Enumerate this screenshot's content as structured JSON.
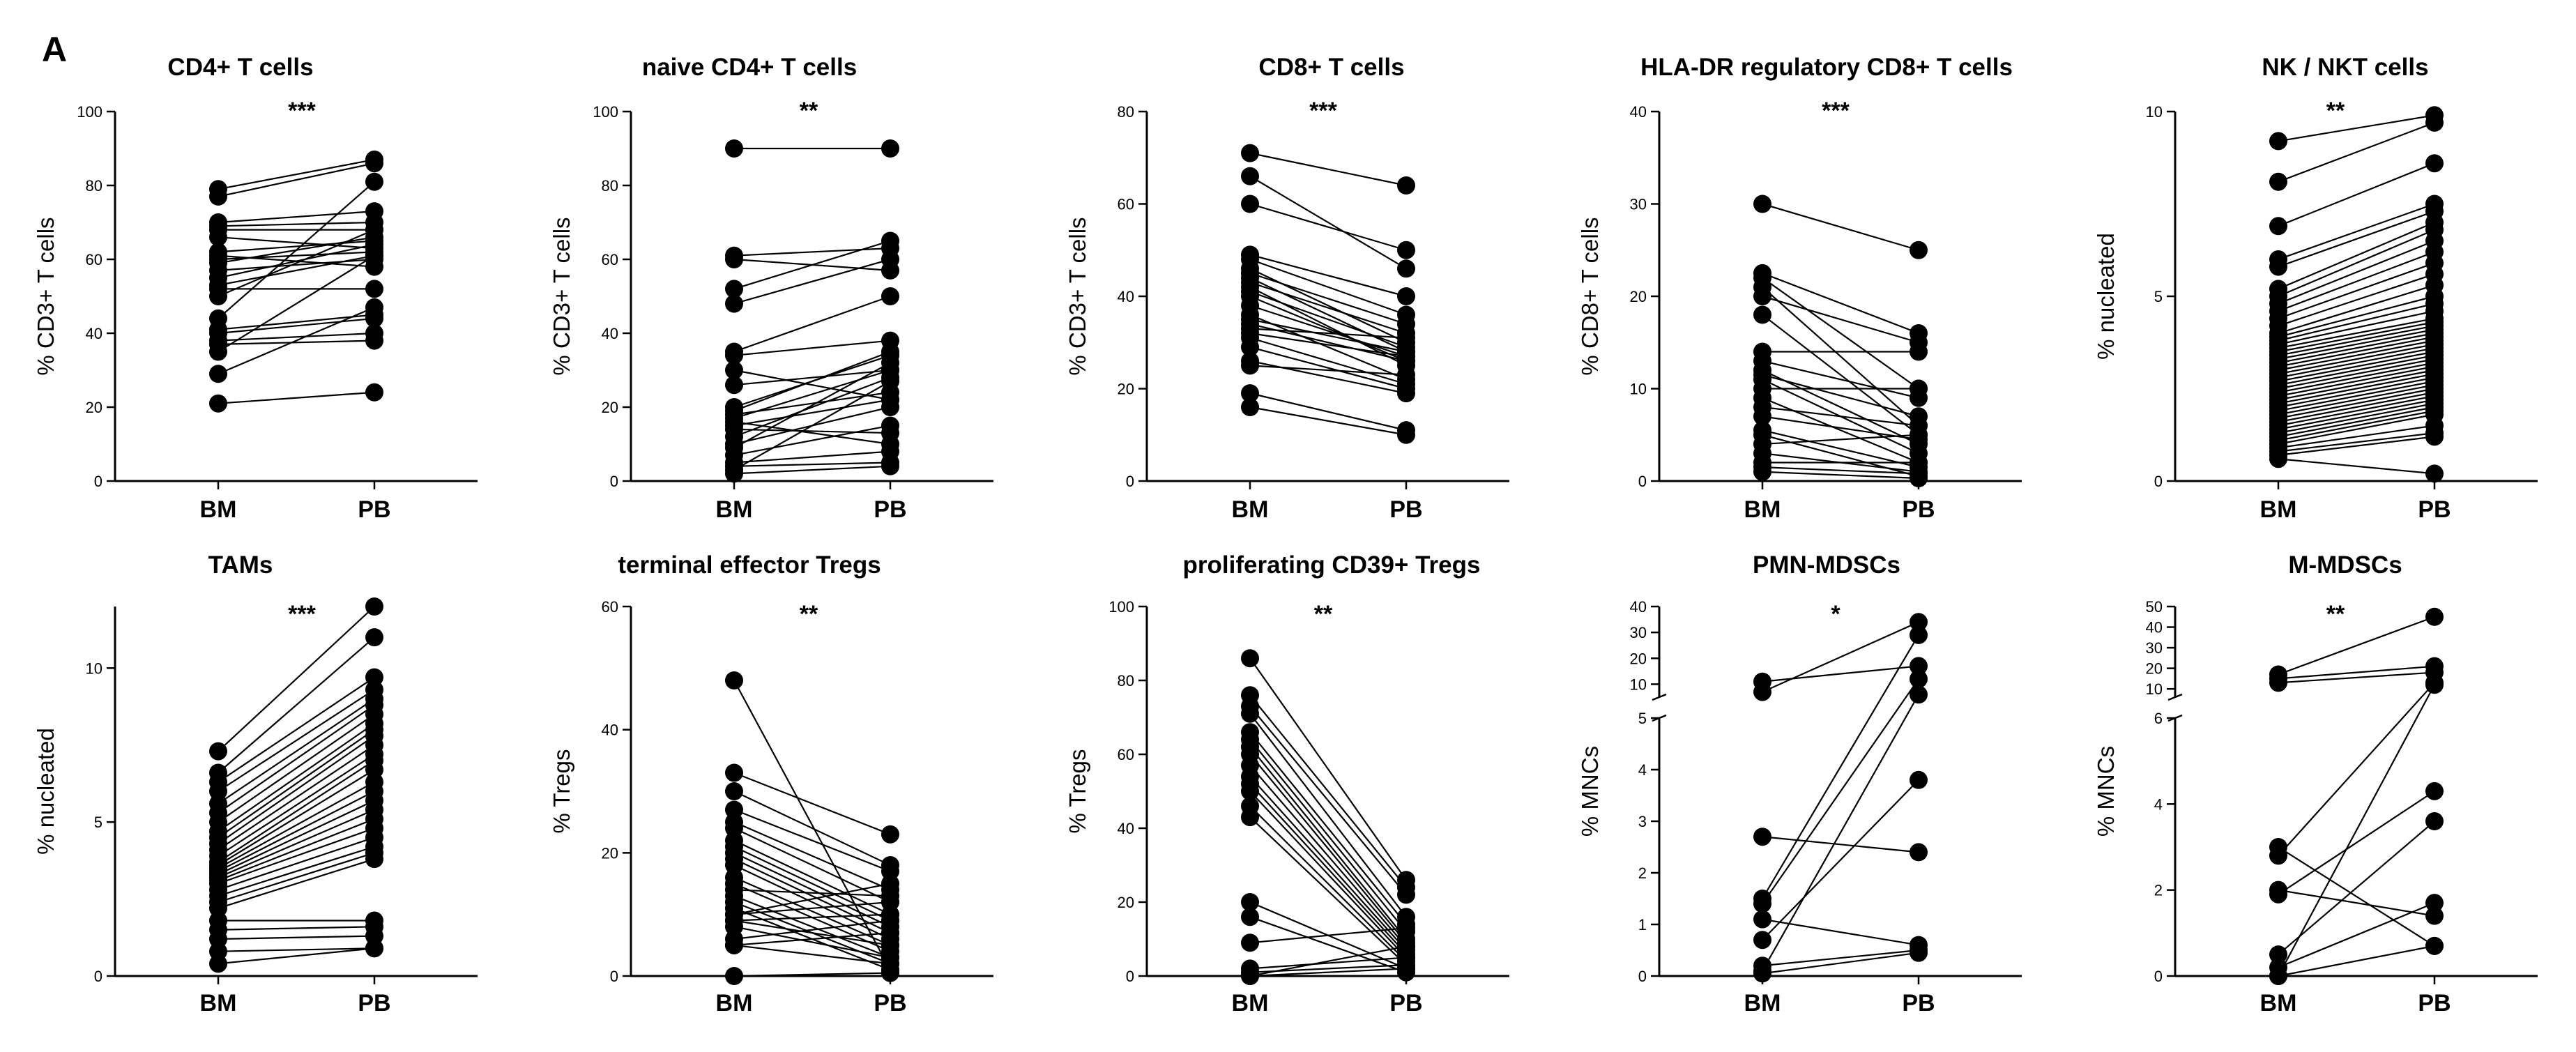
{
  "figure": {
    "panel_label": "A"
  },
  "chart_data": [
    {
      "type": "scatter",
      "title": "CD4+ T cells",
      "ylabel": "% CD3+ T cells",
      "ylim": [
        0,
        100
      ],
      "yticks": [
        "0",
        "20",
        "40",
        "60",
        "80",
        "100"
      ],
      "categories": [
        "BM",
        "PB"
      ],
      "significance": "***",
      "pairs": [
        [
          79,
          87
        ],
        [
          77,
          86
        ],
        [
          70,
          73
        ],
        [
          69,
          70
        ],
        [
          68,
          68
        ],
        [
          66,
          63
        ],
        [
          62,
          65
        ],
        [
          61,
          58
        ],
        [
          60,
          62
        ],
        [
          59,
          66
        ],
        [
          57,
          60
        ],
        [
          55,
          64
        ],
        [
          53,
          61
        ],
        [
          52,
          52
        ],
        [
          50,
          68
        ],
        [
          44,
          81
        ],
        [
          41,
          45
        ],
        [
          40,
          44
        ],
        [
          38,
          40
        ],
        [
          37,
          38
        ],
        [
          35,
          61
        ],
        [
          29,
          47
        ],
        [
          21,
          24
        ]
      ]
    },
    {
      "type": "scatter",
      "title": "naive CD4+ T cells",
      "ylabel": "% CD3+ T cells",
      "ylim": [
        0,
        100
      ],
      "yticks": [
        "0",
        "20",
        "40",
        "60",
        "80",
        "100"
      ],
      "categories": [
        "BM",
        "PB"
      ],
      "significance": "**",
      "pairs": [
        [
          90,
          90
        ],
        [
          61,
          63
        ],
        [
          60,
          57
        ],
        [
          52,
          65
        ],
        [
          48,
          60
        ],
        [
          35,
          50
        ],
        [
          34,
          38
        ],
        [
          30,
          22
        ],
        [
          26,
          30
        ],
        [
          20,
          34
        ],
        [
          19,
          35
        ],
        [
          18,
          24
        ],
        [
          17,
          30
        ],
        [
          16,
          10
        ],
        [
          15,
          22
        ],
        [
          14,
          13
        ],
        [
          12,
          28
        ],
        [
          10,
          20
        ],
        [
          9,
          32
        ],
        [
          7,
          15
        ],
        [
          5,
          8
        ],
        [
          4,
          5
        ],
        [
          3,
          27
        ],
        [
          2,
          4
        ]
      ]
    },
    {
      "type": "scatter",
      "title": "CD8+ T cells",
      "ylabel": "% CD3+ T cells",
      "ylim": [
        0,
        80
      ],
      "yticks": [
        "0",
        "20",
        "40",
        "60",
        "80"
      ],
      "categories": [
        "BM",
        "PB"
      ],
      "significance": "***",
      "pairs": [
        [
          71,
          64
        ],
        [
          66,
          46
        ],
        [
          60,
          50
        ],
        [
          49,
          40
        ],
        [
          48,
          36
        ],
        [
          46,
          30
        ],
        [
          45,
          34
        ],
        [
          44,
          28
        ],
        [
          43,
          32
        ],
        [
          42,
          25
        ],
        [
          41,
          29
        ],
        [
          40,
          26
        ],
        [
          38,
          27
        ],
        [
          36,
          22
        ],
        [
          35,
          28
        ],
        [
          34,
          26
        ],
        [
          33,
          31
        ],
        [
          32,
          27
        ],
        [
          31,
          21
        ],
        [
          29,
          20
        ],
        [
          26,
          19
        ],
        [
          25,
          23
        ],
        [
          19,
          11
        ],
        [
          16,
          10
        ]
      ]
    },
    {
      "type": "scatter",
      "title": "HLA-DR regulatory CD8+ T cells",
      "ylabel": "% CD8+ T cells",
      "ylim": [
        0,
        40
      ],
      "yticks": [
        "0",
        "10",
        "20",
        "30",
        "40"
      ],
      "categories": [
        "BM",
        "PB"
      ],
      "significance": "***",
      "pairs": [
        [
          30,
          25
        ],
        [
          22.5,
          16
        ],
        [
          22,
          10
        ],
        [
          21,
          6
        ],
        [
          20,
          15
        ],
        [
          18,
          5
        ],
        [
          14,
          14
        ],
        [
          13,
          9
        ],
        [
          12,
          4
        ],
        [
          11.5,
          7
        ],
        [
          11,
          3
        ],
        [
          10,
          10
        ],
        [
          9,
          2
        ],
        [
          8,
          6
        ],
        [
          7,
          4.5
        ],
        [
          5.5,
          1.5
        ],
        [
          5,
          0.5
        ],
        [
          4,
          5
        ],
        [
          3,
          1
        ],
        [
          2,
          2
        ],
        [
          1.5,
          0.8
        ],
        [
          1,
          0.3
        ]
      ]
    },
    {
      "type": "scatter",
      "title": "NK / NKT cells",
      "ylabel": "% nucleated",
      "ylim": [
        0,
        10
      ],
      "yticks": [
        "0",
        "5",
        "10"
      ],
      "categories": [
        "BM",
        "PB"
      ],
      "significance": "**",
      "pairs": [
        [
          9.2,
          9.9
        ],
        [
          8.1,
          9.7
        ],
        [
          6.9,
          8.6
        ],
        [
          6.0,
          7.5
        ],
        [
          5.8,
          7.3
        ],
        [
          5.2,
          7.0
        ],
        [
          5.0,
          6.8
        ],
        [
          4.8,
          6.5
        ],
        [
          4.6,
          6.2
        ],
        [
          4.4,
          5.9
        ],
        [
          4.2,
          5.6
        ],
        [
          4.0,
          5.3
        ],
        [
          3.9,
          5.0
        ],
        [
          3.8,
          4.8
        ],
        [
          3.7,
          4.6
        ],
        [
          3.6,
          4.4
        ],
        [
          3.5,
          4.3
        ],
        [
          3.4,
          4.2
        ],
        [
          3.3,
          4.1
        ],
        [
          3.2,
          4.0
        ],
        [
          3.1,
          3.9
        ],
        [
          3.0,
          3.8
        ],
        [
          2.9,
          3.7
        ],
        [
          2.8,
          3.6
        ],
        [
          2.7,
          3.5
        ],
        [
          2.6,
          3.4
        ],
        [
          2.5,
          3.3
        ],
        [
          2.4,
          3.2
        ],
        [
          2.3,
          3.1
        ],
        [
          2.2,
          3.0
        ],
        [
          2.1,
          2.9
        ],
        [
          2.0,
          2.8
        ],
        [
          1.9,
          2.7
        ],
        [
          1.8,
          2.6
        ],
        [
          1.7,
          2.5
        ],
        [
          1.6,
          2.4
        ],
        [
          1.5,
          2.3
        ],
        [
          1.4,
          2.2
        ],
        [
          1.3,
          2.1
        ],
        [
          1.2,
          2.0
        ],
        [
          1.1,
          1.9
        ],
        [
          1.0,
          1.8
        ],
        [
          0.9,
          1.5
        ],
        [
          0.8,
          1.3
        ],
        [
          0.7,
          1.2
        ],
        [
          0.6,
          0.2
        ]
      ]
    },
    {
      "type": "scatter",
      "title": "TAMs",
      "ylabel": "% nucleated",
      "ylim": [
        0,
        12
      ],
      "yticks": [
        "0",
        "5",
        "10"
      ],
      "categories": [
        "BM",
        "PB"
      ],
      "significance": "***",
      "pairs": [
        [
          7.3,
          12.0
        ],
        [
          6.6,
          11.0
        ],
        [
          6.3,
          9.7
        ],
        [
          6.0,
          9.3
        ],
        [
          5.6,
          9.0
        ],
        [
          5.3,
          8.8
        ],
        [
          5.0,
          8.5
        ],
        [
          4.7,
          8.2
        ],
        [
          4.5,
          8.0
        ],
        [
          4.3,
          7.8
        ],
        [
          4.1,
          7.5
        ],
        [
          3.9,
          7.2
        ],
        [
          3.7,
          7.0
        ],
        [
          3.6,
          6.7
        ],
        [
          3.5,
          6.3
        ],
        [
          3.4,
          6.0
        ],
        [
          3.3,
          5.7
        ],
        [
          3.2,
          5.4
        ],
        [
          3.1,
          5.1
        ],
        [
          3.0,
          4.8
        ],
        [
          2.8,
          4.5
        ],
        [
          2.6,
          4.2
        ],
        [
          2.4,
          4.0
        ],
        [
          2.2,
          3.8
        ],
        [
          1.8,
          1.8
        ],
        [
          1.5,
          1.6
        ],
        [
          1.2,
          1.3
        ],
        [
          0.8,
          0.9
        ],
        [
          0.4,
          0.9
        ]
      ]
    },
    {
      "type": "scatter",
      "title": "terminal effector Tregs",
      "ylabel": "% Tregs",
      "ylim": [
        0,
        60
      ],
      "yticks": [
        "0",
        "20",
        "40",
        "60"
      ],
      "categories": [
        "BM",
        "PB"
      ],
      "significance": "**",
      "pairs": [
        [
          48,
          1
        ],
        [
          33,
          23
        ],
        [
          30,
          18
        ],
        [
          27,
          17
        ],
        [
          25,
          14
        ],
        [
          24,
          12
        ],
        [
          22,
          10
        ],
        [
          21,
          9
        ],
        [
          20,
          8
        ],
        [
          19,
          7
        ],
        [
          18,
          6
        ],
        [
          16,
          5
        ],
        [
          15,
          4
        ],
        [
          14,
          13
        ],
        [
          13,
          3
        ],
        [
          12,
          2
        ],
        [
          11,
          1
        ],
        [
          10,
          15
        ],
        [
          10,
          12
        ],
        [
          9,
          10
        ],
        [
          9,
          5
        ],
        [
          8,
          3
        ],
        [
          6,
          9
        ],
        [
          5,
          7
        ],
        [
          5,
          2
        ],
        [
          0,
          0.5
        ]
      ]
    },
    {
      "type": "scatter",
      "title": "proliferating CD39+ Tregs",
      "ylabel": "% Tregs",
      "ylim": [
        0,
        100
      ],
      "yticks": [
        "0",
        "20",
        "40",
        "60",
        "80",
        "100"
      ],
      "categories": [
        "BM",
        "PB"
      ],
      "significance": "**",
      "pairs": [
        [
          86,
          26
        ],
        [
          76,
          24
        ],
        [
          73,
          22
        ],
        [
          71,
          16
        ],
        [
          66,
          14
        ],
        [
          64,
          12
        ],
        [
          62,
          10
        ],
        [
          60,
          9
        ],
        [
          57,
          8
        ],
        [
          54,
          7
        ],
        [
          52,
          6
        ],
        [
          50,
          5
        ],
        [
          46,
          4
        ],
        [
          43,
          3
        ],
        [
          20,
          2
        ],
        [
          16,
          1
        ],
        [
          9,
          13
        ],
        [
          2,
          5
        ],
        [
          1,
          3
        ],
        [
          0,
          2
        ],
        [
          0,
          8
        ]
      ]
    },
    {
      "type": "scatter",
      "title": "PMN-MDSCs",
      "ylabel": "% MNCs",
      "ylim": [
        0,
        40
      ],
      "axis_break": {
        "lower": [
          0,
          5
        ],
        "upper": [
          5,
          40
        ]
      },
      "yticks_lower": [
        "0",
        "1",
        "2",
        "3",
        "4",
        "5"
      ],
      "yticks_upper": [
        "10",
        "20",
        "30",
        "40"
      ],
      "categories": [
        "BM",
        "PB"
      ],
      "significance": "*",
      "pairs": [
        [
          11,
          17
        ],
        [
          7,
          34
        ],
        [
          2.7,
          2.4
        ],
        [
          1.5,
          29
        ],
        [
          1.4,
          12
        ],
        [
          1.1,
          0.6
        ],
        [
          0.7,
          3.8
        ],
        [
          0.2,
          0.5
        ],
        [
          0.1,
          6
        ],
        [
          0.05,
          0.45
        ]
      ]
    },
    {
      "type": "scatter",
      "title": "M-MDSCs",
      "ylabel": "% MNCs",
      "ylim": [
        0,
        50
      ],
      "axis_break": {
        "lower": [
          0,
          6
        ],
        "upper": [
          6,
          50
        ]
      },
      "yticks_lower": [
        "0",
        "2",
        "4",
        "6"
      ],
      "yticks_upper": [
        "10",
        "20",
        "30",
        "40",
        "50"
      ],
      "categories": [
        "BM",
        "PB"
      ],
      "significance": "**",
      "pairs": [
        [
          17,
          45
        ],
        [
          15,
          21
        ],
        [
          13,
          18
        ],
        [
          3.0,
          0.7
        ],
        [
          2.8,
          13
        ],
        [
          2.0,
          1.4
        ],
        [
          1.9,
          4.3
        ],
        [
          0.5,
          3.6
        ],
        [
          0.2,
          1.7
        ],
        [
          0,
          0.7
        ],
        [
          0,
          12
        ]
      ]
    }
  ]
}
